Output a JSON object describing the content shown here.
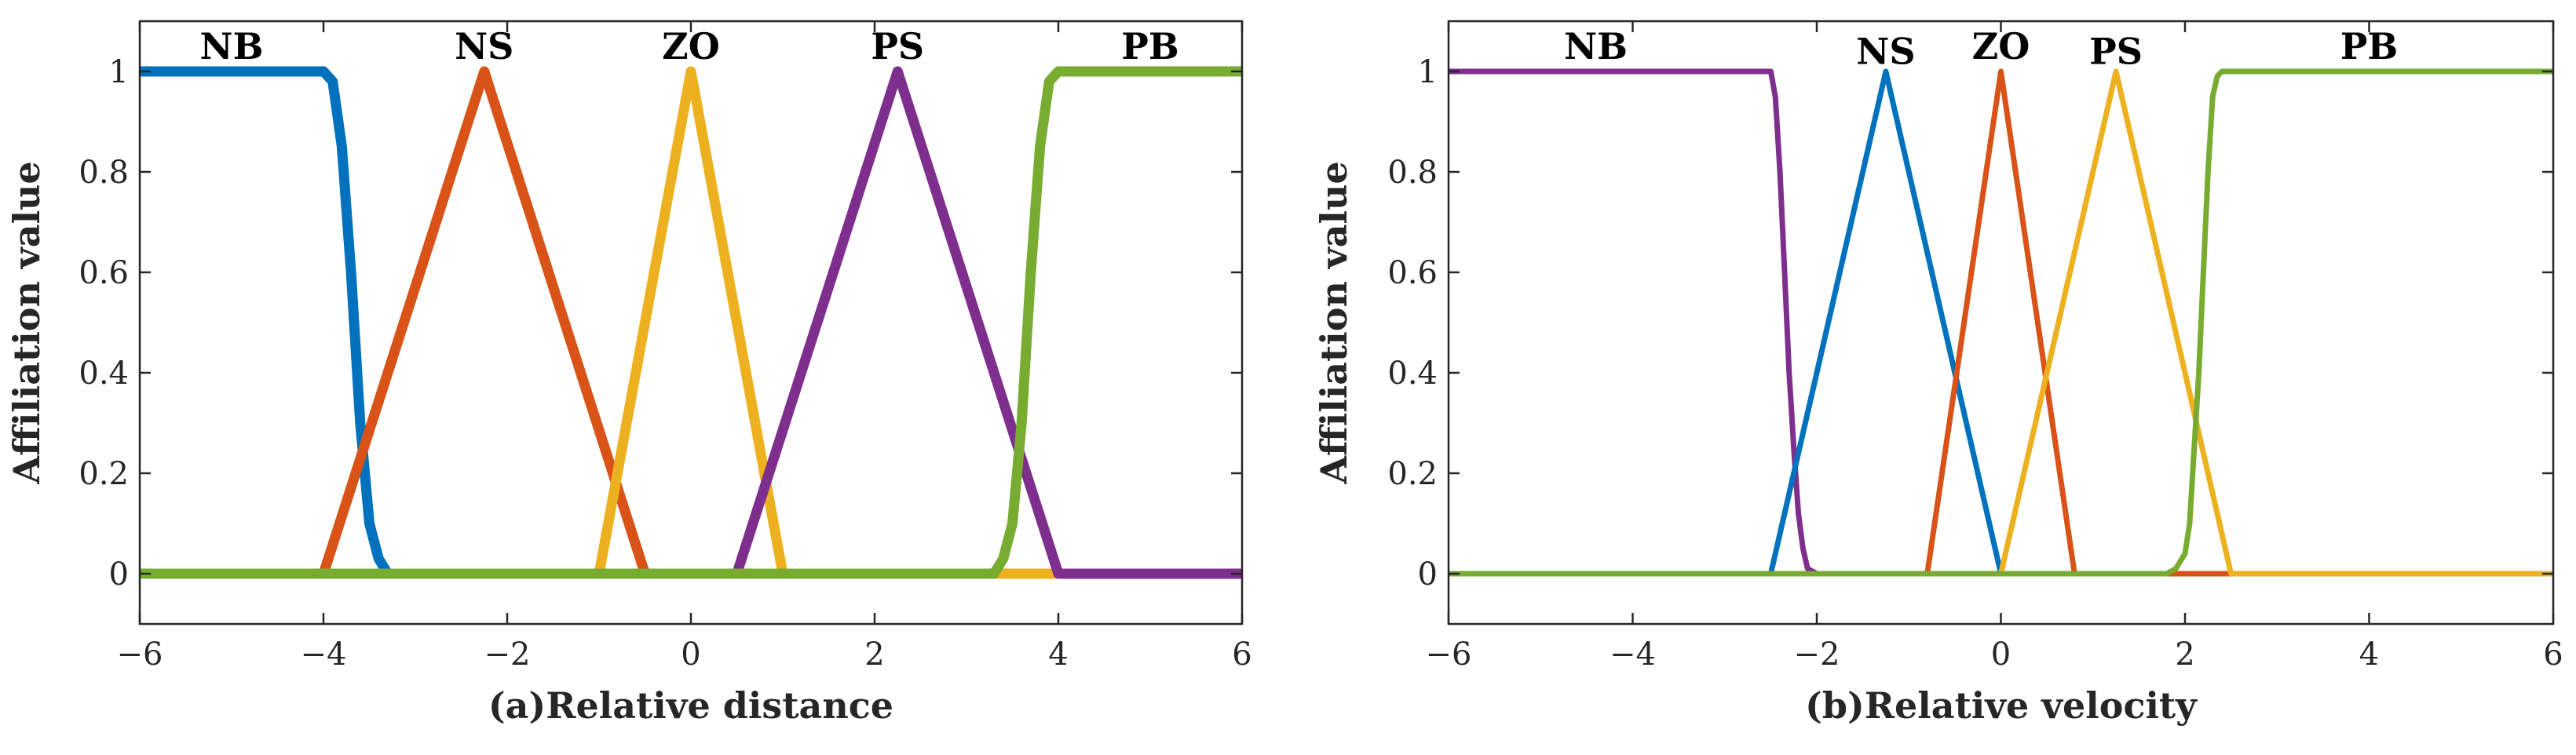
{
  "chart_data": [
    {
      "type": "line",
      "xlabel": "(a)Relative distance",
      "ylabel": "Affiliation value",
      "xlim": [
        -6,
        6
      ],
      "ylim": [
        -0.1,
        1.1
      ],
      "xticks": [
        -6,
        -4,
        -2,
        0,
        2,
        4,
        6
      ],
      "xtick_labels": [
        "−6",
        "−4",
        "−2",
        "0",
        "2",
        "4",
        "6"
      ],
      "yticks": [
        0,
        0.2,
        0.4,
        0.6,
        0.8,
        1
      ],
      "ytick_labels": [
        "0",
        "0.2",
        "0.4",
        "0.6",
        "0.8",
        "1"
      ],
      "grid": false,
      "series": [
        {
          "name": "NB",
          "color": "#0072BD",
          "x": [
            -6,
            -4.0,
            -3.9,
            -3.8,
            -3.7,
            -3.6,
            -3.5,
            -3.4,
            -3.3,
            6
          ],
          "y": [
            1,
            1,
            0.98,
            0.85,
            0.6,
            0.3,
            0.1,
            0.03,
            0,
            0
          ]
        },
        {
          "name": "NS",
          "color": "#D95319",
          "x": [
            -6,
            -4,
            -2.25,
            -0.5,
            6
          ],
          "y": [
            0,
            0,
            1,
            0,
            0
          ]
        },
        {
          "name": "ZO",
          "color": "#EDB120",
          "x": [
            -6,
            -1,
            0,
            1,
            6
          ],
          "y": [
            0,
            0,
            1,
            0,
            0
          ]
        },
        {
          "name": "PS",
          "color": "#7E2F8E",
          "x": [
            -6,
            0.5,
            2.25,
            4,
            6
          ],
          "y": [
            0,
            0,
            1,
            0,
            0
          ]
        },
        {
          "name": "PB",
          "color": "#77AC30",
          "x": [
            -6,
            3.3,
            3.4,
            3.5,
            3.6,
            3.7,
            3.8,
            3.9,
            4.0,
            6
          ],
          "y": [
            0,
            0,
            0.03,
            0.1,
            0.3,
            0.6,
            0.85,
            0.98,
            1,
            1
          ]
        }
      ],
      "label_positions": [
        {
          "text": "NB",
          "x": -5.0,
          "y": 1.05
        },
        {
          "text": "NS",
          "x": -2.25,
          "y": 1.05
        },
        {
          "text": "ZO",
          "x": 0.0,
          "y": 1.05
        },
        {
          "text": "PS",
          "x": 2.25,
          "y": 1.05
        },
        {
          "text": "PB",
          "x": 5.0,
          "y": 1.05
        }
      ]
    },
    {
      "type": "line",
      "xlabel": "(b)Relative velocity",
      "ylabel": "Affiliation value",
      "xlim": [
        -6,
        6
      ],
      "ylim": [
        -0.1,
        1.1
      ],
      "xticks": [
        -6,
        -4,
        -2,
        0,
        2,
        4,
        6
      ],
      "xtick_labels": [
        "−6",
        "−4",
        "−2",
        "0",
        "2",
        "4",
        "6"
      ],
      "yticks": [
        0,
        0.2,
        0.4,
        0.6,
        0.8,
        1
      ],
      "ytick_labels": [
        "0",
        "0.2",
        "0.4",
        "0.6",
        "0.8",
        "1"
      ],
      "grid": false,
      "series": [
        {
          "name": "NB",
          "color": "#7E2F8E",
          "x": [
            -6,
            -2.5,
            -2.45,
            -2.4,
            -2.35,
            -2.3,
            -2.25,
            -2.2,
            -2.15,
            -2.1,
            -2.0,
            6
          ],
          "y": [
            1,
            1,
            0.95,
            0.8,
            0.6,
            0.4,
            0.25,
            0.12,
            0.05,
            0.01,
            0,
            0
          ]
        },
        {
          "name": "NS",
          "color": "#0072BD",
          "x": [
            -6,
            -2.5,
            -1.25,
            0,
            6
          ],
          "y": [
            0,
            0,
            1,
            0,
            0
          ]
        },
        {
          "name": "ZO",
          "color": "#D95319",
          "x": [
            -6,
            -0.8,
            0,
            0.8,
            6
          ],
          "y": [
            0,
            0,
            1,
            0,
            0
          ]
        },
        {
          "name": "PS",
          "color": "#EDB120",
          "x": [
            -6,
            0,
            1.25,
            2.5,
            6
          ],
          "y": [
            0,
            0,
            1,
            0,
            0
          ]
        },
        {
          "name": "PB",
          "color": "#77AC30",
          "x": [
            -6,
            1.8,
            1.9,
            2.0,
            2.05,
            2.1,
            2.15,
            2.2,
            2.25,
            2.3,
            2.35,
            2.4,
            2.5,
            6
          ],
          "y": [
            0,
            0,
            0.01,
            0.04,
            0.1,
            0.25,
            0.4,
            0.6,
            0.8,
            0.95,
            0.99,
            1,
            1,
            1
          ]
        }
      ],
      "label_positions": [
        {
          "text": "NB",
          "x": -4.4,
          "y": 1.05
        },
        {
          "text": "NS",
          "x": -1.25,
          "y": 1.04
        },
        {
          "text": "ZO",
          "x": 0.0,
          "y": 1.05
        },
        {
          "text": "PS",
          "x": 1.25,
          "y": 1.04
        },
        {
          "text": "PB",
          "x": 4.0,
          "y": 1.05
        }
      ]
    }
  ]
}
